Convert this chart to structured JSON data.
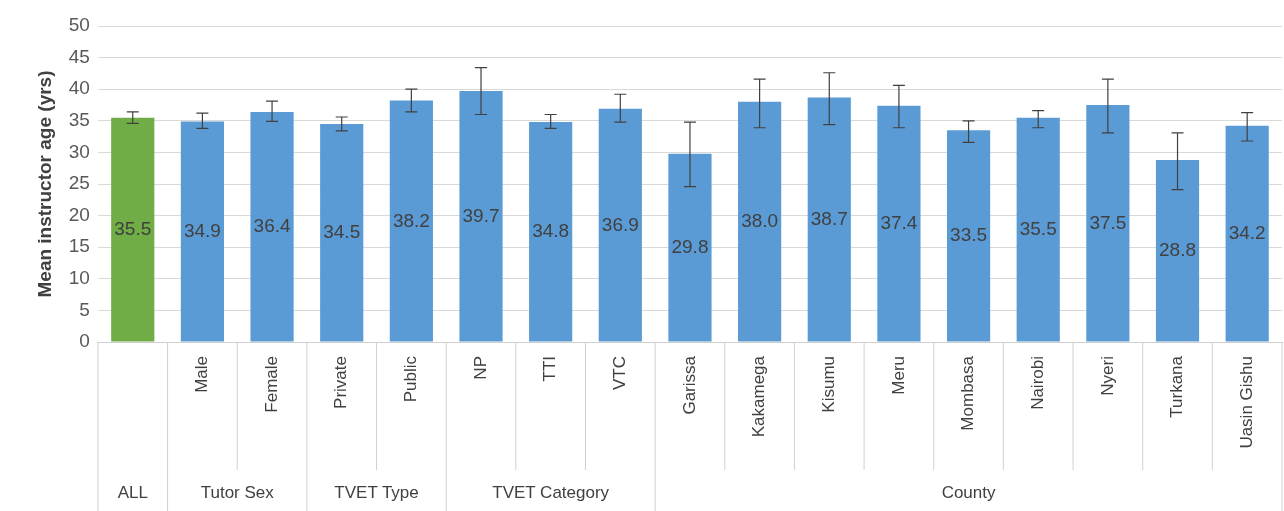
{
  "chart_data": {
    "type": "bar",
    "ylabel": "Mean instructor age (yrs)",
    "categories": [
      null,
      "Male",
      "Female",
      "Private",
      "Public",
      "NP",
      "TTI",
      "VTC",
      "Garissa",
      "Kakamega",
      "Kisumu",
      "Meru",
      "Mombasa",
      "Nairobi",
      "Nyeri",
      "Turkana",
      "Uasin Gishu"
    ],
    "values": [
      35.5,
      34.9,
      36.4,
      34.5,
      38.2,
      39.7,
      34.8,
      36.9,
      29.8,
      38.0,
      38.7,
      37.4,
      33.5,
      35.5,
      37.5,
      28.8,
      34.2
    ],
    "colors": [
      "#70ad47",
      "#5b9bd5",
      "#5b9bd5",
      "#5b9bd5",
      "#5b9bd5",
      "#5b9bd5",
      "#5b9bd5",
      "#5b9bd5",
      "#5b9bd5",
      "#5b9bd5",
      "#5b9bd5",
      "#5b9bd5",
      "#5b9bd5",
      "#5b9bd5",
      "#5b9bd5",
      "#5b9bd5",
      "#5b9bd5"
    ],
    "errors": [
      [
        34.6,
        36.4
      ],
      [
        33.8,
        36.2
      ],
      [
        34.9,
        38.1
      ],
      [
        33.4,
        35.6
      ],
      [
        36.4,
        40.0
      ],
      [
        36.0,
        43.4
      ],
      [
        33.8,
        36.0
      ],
      [
        34.8,
        39.2
      ],
      [
        24.6,
        34.8
      ],
      [
        33.9,
        41.6
      ],
      [
        34.4,
        42.6
      ],
      [
        33.9,
        40.6
      ],
      [
        31.6,
        35.0
      ],
      [
        33.9,
        36.6
      ],
      [
        33.1,
        41.6
      ],
      [
        24.1,
        33.1
      ],
      [
        31.8,
        36.3
      ]
    ],
    "value_labels": [
      "35.5",
      "34.9",
      "36.4",
      "34.5",
      "38.2",
      "39.7",
      "34.8",
      "36.9",
      "29.8",
      "38.0",
      "38.7",
      "37.4",
      "33.5",
      "35.5",
      "37.5",
      "28.8",
      "34.2"
    ],
    "ylim": [
      0,
      50
    ],
    "yticks": [
      0,
      5,
      10,
      15,
      20,
      25,
      30,
      35,
      40,
      45,
      50
    ],
    "grid": "y",
    "legend": false,
    "annotations": [
      "ALL",
      "Tutor Sex",
      "TVET Type",
      "TVET Category",
      "County"
    ]
  }
}
